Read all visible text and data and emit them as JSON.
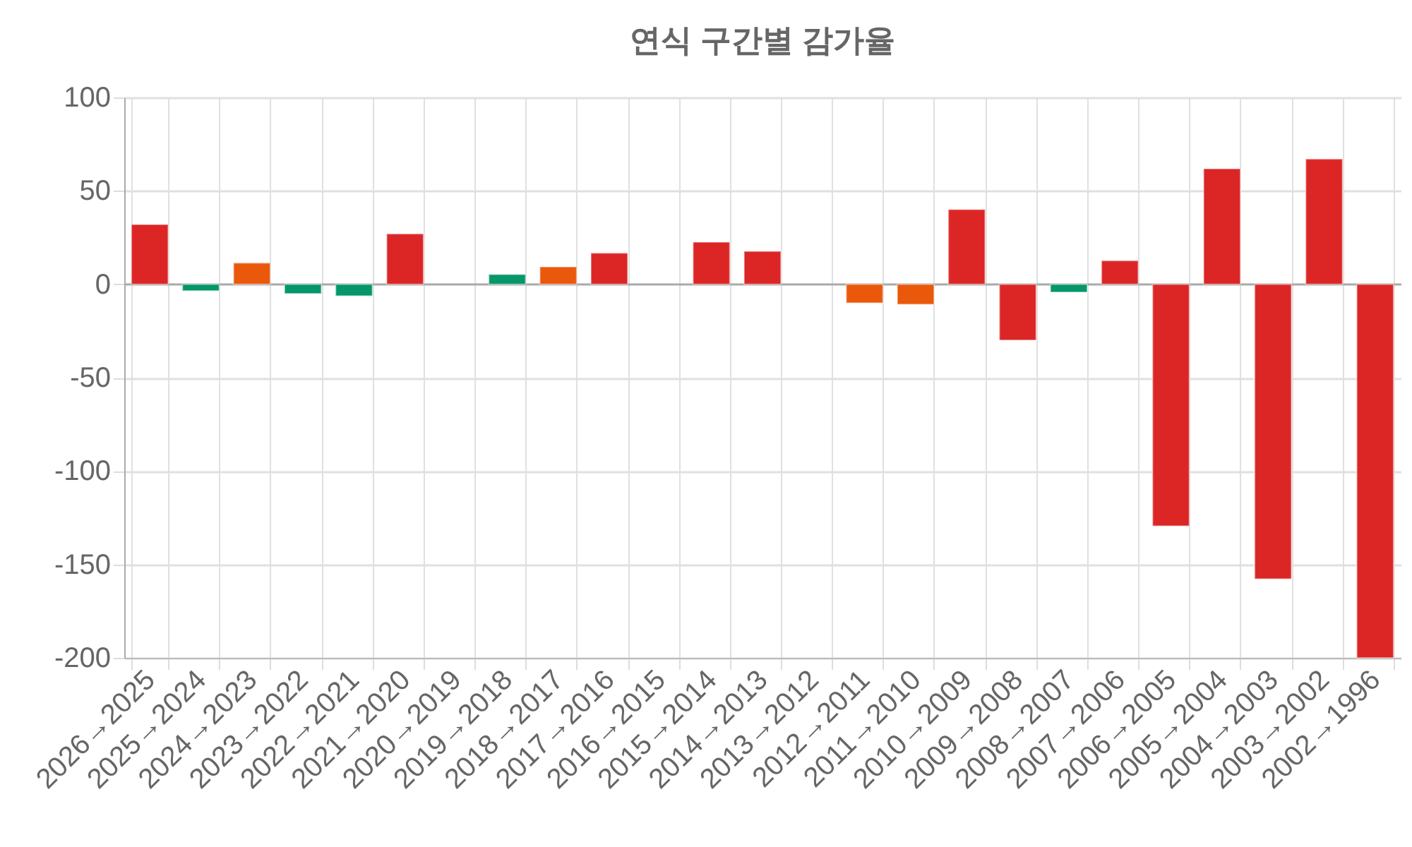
{
  "chart_data": {
    "type": "bar",
    "title": "연식 구간별 감가율",
    "categories": [
      "2026→2025",
      "2025→2024",
      "2024→2023",
      "2023→2022",
      "2022→2021",
      "2021→2020",
      "2020→2019",
      "2019→2018",
      "2018→2017",
      "2017→2016",
      "2016→2015",
      "2015→2014",
      "2014→2013",
      "2013→2012",
      "2012→2011",
      "2011→2010",
      "2010→2009",
      "2009→2008",
      "2008→2007",
      "2007→2006",
      "2006→2005",
      "2005→2004",
      "2004→2003",
      "2003→2002",
      "2002→1996"
    ],
    "values": [
      32,
      -3.5,
      11.4,
      -5,
      -6.3,
      27,
      null,
      5.3,
      9.3,
      16.7,
      null,
      22.5,
      17.6,
      null,
      -10,
      -10.8,
      40,
      -30,
      -4.3,
      12.6,
      -129.4,
      61.8,
      -157.8,
      67,
      -200
    ],
    "colors": [
      "#dc2626",
      "#059669",
      "#ea580c",
      "#059669",
      "#059669",
      "#dc2626",
      null,
      "#059669",
      "#ea580c",
      "#dc2626",
      null,
      "#dc2626",
      "#dc2626",
      null,
      "#ea580c",
      "#ea580c",
      "#dc2626",
      "#dc2626",
      "#059669",
      "#dc2626",
      "#dc2626",
      "#dc2626",
      "#dc2626",
      "#dc2626",
      "#dc2626"
    ],
    "ylim": [
      -200,
      100
    ],
    "yticks": [
      -200,
      -150,
      -100,
      -50,
      0,
      50,
      100
    ],
    "grid": true
  }
}
